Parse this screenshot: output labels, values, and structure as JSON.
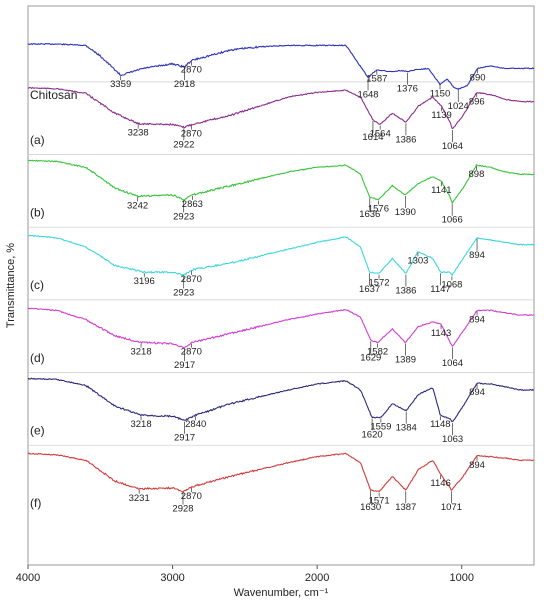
{
  "chart_data": {
    "type": "line",
    "title": "",
    "xlabel": "Wavenumber, cm⁻¹",
    "ylabel": "Transmittance, %",
    "x_reversed": true,
    "xlim": [
      4000,
      500
    ],
    "x_ticks": [
      "4000",
      "3000",
      "2000",
      "1000"
    ],
    "x_tick_values": [
      4000,
      3000,
      2000,
      1000
    ],
    "grid": false,
    "series": [
      {
        "name": "Chitosan",
        "color": "#2b33b8",
        "base": 0.07,
        "points": [
          [
            4000,
            0.02
          ],
          [
            3800,
            0.02
          ],
          [
            3600,
            0.05
          ],
          [
            3500,
            0.28
          ],
          [
            3359,
            0.7
          ],
          [
            3200,
            0.55
          ],
          [
            3000,
            0.45
          ],
          [
            2918,
            0.52
          ],
          [
            2870,
            0.38
          ],
          [
            2600,
            0.15
          ],
          [
            2400,
            0.08
          ],
          [
            2200,
            0.05
          ],
          [
            2000,
            0.05
          ],
          [
            1800,
            0.05
          ],
          [
            1648,
            0.75
          ],
          [
            1587,
            0.58
          ],
          [
            1500,
            0.62
          ],
          [
            1420,
            0.6
          ],
          [
            1376,
            0.62
          ],
          [
            1320,
            0.58
          ],
          [
            1230,
            0.55
          ],
          [
            1150,
            0.9
          ],
          [
            1100,
            0.78
          ],
          [
            1060,
            0.95
          ],
          [
            1024,
            1.0
          ],
          [
            960,
            0.92
          ],
          [
            890,
            0.55
          ],
          [
            800,
            0.5
          ],
          [
            700,
            0.55
          ],
          [
            600,
            0.55
          ]
        ],
        "peaks": [
          3359,
          2918,
          2870,
          1648,
          1587,
          1376,
          1150,
          1024,
          890
        ]
      },
      {
        "name": "(a)",
        "color": "#8a2e8e",
        "base": 0.15,
        "points": [
          [
            4000,
            0.0
          ],
          [
            3800,
            0.02
          ],
          [
            3600,
            0.12
          ],
          [
            3400,
            0.55
          ],
          [
            3238,
            0.78
          ],
          [
            3000,
            0.8
          ],
          [
            2922,
            0.86
          ],
          [
            2870,
            0.8
          ],
          [
            2600,
            0.6
          ],
          [
            2400,
            0.4
          ],
          [
            2200,
            0.2
          ],
          [
            2000,
            0.1
          ],
          [
            1800,
            0.05
          ],
          [
            1700,
            0.2
          ],
          [
            1614,
            0.7
          ],
          [
            1564,
            0.8
          ],
          [
            1480,
            0.55
          ],
          [
            1386,
            0.75
          ],
          [
            1300,
            0.4
          ],
          [
            1200,
            0.2
          ],
          [
            1139,
            0.4
          ],
          [
            1080,
            0.75
          ],
          [
            1064,
            0.9
          ],
          [
            990,
            0.6
          ],
          [
            896,
            0.1
          ],
          [
            800,
            0.15
          ],
          [
            700,
            0.25
          ],
          [
            600,
            0.3
          ]
        ],
        "peaks": [
          3238,
          2922,
          2870,
          1614,
          1564,
          1386,
          1139,
          1064,
          896
        ]
      },
      {
        "name": "(b)",
        "color": "#39c43c",
        "base": 0.28,
        "points": [
          [
            4000,
            0.0
          ],
          [
            3800,
            0.02
          ],
          [
            3600,
            0.15
          ],
          [
            3400,
            0.6
          ],
          [
            3242,
            0.78
          ],
          [
            3000,
            0.75
          ],
          [
            2923,
            0.85
          ],
          [
            2863,
            0.75
          ],
          [
            2600,
            0.55
          ],
          [
            2400,
            0.4
          ],
          [
            2200,
            0.25
          ],
          [
            2000,
            0.15
          ],
          [
            1800,
            0.1
          ],
          [
            1700,
            0.3
          ],
          [
            1636,
            0.8
          ],
          [
            1576,
            0.85
          ],
          [
            1480,
            0.55
          ],
          [
            1390,
            0.75
          ],
          [
            1300,
            0.5
          ],
          [
            1200,
            0.35
          ],
          [
            1141,
            0.45
          ],
          [
            1080,
            0.8
          ],
          [
            1066,
            0.92
          ],
          [
            990,
            0.6
          ],
          [
            898,
            0.1
          ],
          [
            800,
            0.15
          ],
          [
            700,
            0.25
          ],
          [
            600,
            0.3
          ]
        ],
        "peaks": [
          3242,
          2923,
          2863,
          1636,
          1576,
          1390,
          1141,
          1066,
          898
        ]
      },
      {
        "name": "(c)",
        "color": "#3cd7dc",
        "base": 0.41,
        "points": [
          [
            4000,
            0.05
          ],
          [
            3800,
            0.1
          ],
          [
            3600,
            0.3
          ],
          [
            3400,
            0.7
          ],
          [
            3196,
            0.85
          ],
          [
            3000,
            0.85
          ],
          [
            2923,
            0.92
          ],
          [
            2870,
            0.8
          ],
          [
            2600,
            0.65
          ],
          [
            2400,
            0.5
          ],
          [
            2200,
            0.35
          ],
          [
            2000,
            0.2
          ],
          [
            1800,
            0.08
          ],
          [
            1700,
            0.3
          ],
          [
            1637,
            0.85
          ],
          [
            1572,
            0.88
          ],
          [
            1480,
            0.55
          ],
          [
            1386,
            0.88
          ],
          [
            1303,
            0.4
          ],
          [
            1200,
            0.55
          ],
          [
            1147,
            0.85
          ],
          [
            1080,
            0.85
          ],
          [
            1068,
            0.92
          ],
          [
            990,
            0.55
          ],
          [
            894,
            0.1
          ],
          [
            800,
            0.15
          ],
          [
            700,
            0.2
          ],
          [
            600,
            0.25
          ]
        ],
        "peaks": [
          3196,
          2923,
          2870,
          1637,
          1572,
          1386,
          1303,
          1147,
          1068,
          894
        ]
      },
      {
        "name": "(d)",
        "color": "#d03fcf",
        "base": 0.54,
        "points": [
          [
            4000,
            0.05
          ],
          [
            3800,
            0.1
          ],
          [
            3600,
            0.3
          ],
          [
            3400,
            0.65
          ],
          [
            3218,
            0.8
          ],
          [
            3000,
            0.82
          ],
          [
            2917,
            0.92
          ],
          [
            2870,
            0.8
          ],
          [
            2600,
            0.6
          ],
          [
            2400,
            0.45
          ],
          [
            2200,
            0.3
          ],
          [
            2000,
            0.18
          ],
          [
            1800,
            0.08
          ],
          [
            1700,
            0.25
          ],
          [
            1629,
            0.75
          ],
          [
            1582,
            0.8
          ],
          [
            1480,
            0.5
          ],
          [
            1389,
            0.8
          ],
          [
            1300,
            0.45
          ],
          [
            1200,
            0.35
          ],
          [
            1143,
            0.4
          ],
          [
            1080,
            0.8
          ],
          [
            1064,
            0.88
          ],
          [
            990,
            0.55
          ],
          [
            894,
            0.1
          ],
          [
            800,
            0.1
          ],
          [
            700,
            0.15
          ],
          [
            600,
            0.2
          ]
        ],
        "peaks": [
          3218,
          2917,
          2870,
          1629,
          1582,
          1389,
          1143,
          1064,
          894
        ]
      },
      {
        "name": "(e)",
        "color": "#2c2a7c",
        "base": 0.67,
        "points": [
          [
            4000,
            0.0
          ],
          [
            3800,
            0.02
          ],
          [
            3600,
            0.15
          ],
          [
            3400,
            0.6
          ],
          [
            3218,
            0.8
          ],
          [
            3000,
            0.82
          ],
          [
            2917,
            0.92
          ],
          [
            2840,
            0.8
          ],
          [
            2600,
            0.55
          ],
          [
            2400,
            0.4
          ],
          [
            2200,
            0.25
          ],
          [
            2000,
            0.12
          ],
          [
            1800,
            0.05
          ],
          [
            1700,
            0.25
          ],
          [
            1620,
            0.85
          ],
          [
            1559,
            0.85
          ],
          [
            1480,
            0.55
          ],
          [
            1384,
            0.7
          ],
          [
            1300,
            0.35
          ],
          [
            1200,
            0.2
          ],
          [
            1148,
            0.8
          ],
          [
            1080,
            0.88
          ],
          [
            1063,
            0.95
          ],
          [
            990,
            0.6
          ],
          [
            894,
            0.1
          ],
          [
            800,
            0.12
          ],
          [
            700,
            0.18
          ],
          [
            600,
            0.25
          ]
        ],
        "peaks": [
          3218,
          2917,
          2840,
          1620,
          1559,
          1384,
          1148,
          1063,
          894
        ]
      },
      {
        "name": "(f)",
        "color": "#d23b3b",
        "base": 0.8,
        "points": [
          [
            4000,
            0.05
          ],
          [
            3800,
            0.08
          ],
          [
            3600,
            0.2
          ],
          [
            3400,
            0.65
          ],
          [
            3231,
            0.82
          ],
          [
            3000,
            0.8
          ],
          [
            2928,
            0.88
          ],
          [
            2870,
            0.78
          ],
          [
            2600,
            0.55
          ],
          [
            2400,
            0.4
          ],
          [
            2200,
            0.25
          ],
          [
            2000,
            0.12
          ],
          [
            1800,
            0.05
          ],
          [
            1700,
            0.25
          ],
          [
            1630,
            0.85
          ],
          [
            1571,
            0.88
          ],
          [
            1480,
            0.55
          ],
          [
            1387,
            0.85
          ],
          [
            1300,
            0.4
          ],
          [
            1200,
            0.2
          ],
          [
            1146,
            0.5
          ],
          [
            1080,
            0.8
          ],
          [
            1071,
            0.85
          ],
          [
            990,
            0.55
          ],
          [
            894,
            0.1
          ],
          [
            800,
            0.12
          ],
          [
            700,
            0.15
          ],
          [
            600,
            0.2
          ]
        ],
        "peaks": [
          3231,
          2928,
          2870,
          1630,
          1571,
          1387,
          1146,
          1071,
          894
        ]
      }
    ],
    "series_labels": [
      "Chitosan",
      "(a)",
      "(b)",
      "(c)",
      "(d)",
      "(e)",
      "(f)"
    ]
  }
}
